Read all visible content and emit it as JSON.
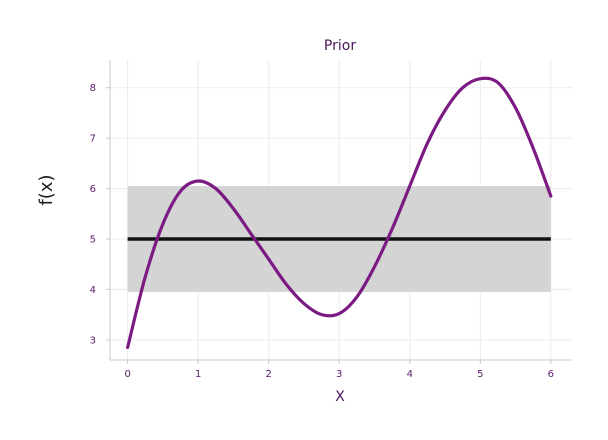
{
  "chart_data": {
    "type": "line",
    "title": "Prior",
    "xlabel": "X",
    "ylabel": "f(x)",
    "xlim": [
      -0.25,
      6.3
    ],
    "ylim": [
      2.6,
      8.55
    ],
    "xticks": [
      0,
      1,
      2,
      3,
      4,
      5,
      6
    ],
    "yticks": [
      3,
      4,
      5,
      6,
      7,
      8
    ],
    "grid": true,
    "band": {
      "x": [
        0,
        6
      ],
      "lower": 3.95,
      "upper": 6.05
    },
    "mean_line": {
      "x": [
        0,
        6
      ],
      "y": 5.0
    },
    "series": [
      {
        "x": [
          0,
          0.25,
          0.5,
          0.75,
          1.0,
          1.25,
          1.5,
          1.75,
          2.0,
          2.25,
          2.5,
          2.75,
          3.0,
          3.25,
          3.5,
          3.75,
          4.0,
          4.25,
          4.5,
          4.75,
          5.0,
          5.25,
          5.5,
          5.75,
          6.0
        ],
        "y": [
          2.85,
          4.25,
          5.3,
          5.95,
          6.15,
          6.0,
          5.6,
          5.1,
          4.6,
          4.1,
          3.72,
          3.5,
          3.52,
          3.85,
          4.45,
          5.2,
          6.05,
          6.9,
          7.55,
          8.0,
          8.18,
          8.1,
          7.6,
          6.8,
          5.85
        ]
      }
    ],
    "colors": {
      "sample": "#7a1a82",
      "mean": "#111111",
      "band": "#d4d4d4",
      "grid": "#ececec",
      "spine": "#c8c8c8"
    }
  }
}
